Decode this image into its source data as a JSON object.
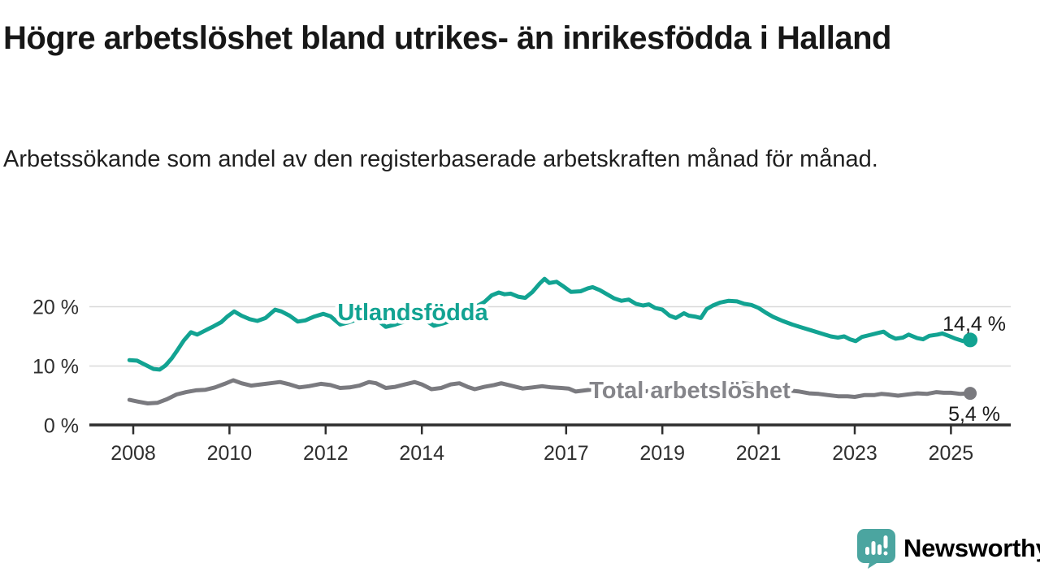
{
  "header": {
    "title": "Högre arbetslöshet bland utrikes- än inrikesfödda i Halland",
    "subtitle": "Arbetssökande som andel av den registerbaserade arbetskraften månad för månad."
  },
  "chart_data": {
    "type": "line",
    "title": "Högre arbetslöshet bland utrikes- än inrikesfödda i Halland",
    "xlabel": "",
    "ylabel": "",
    "grid": "horizontal-only",
    "legend_position": "inline-labels-on-lines",
    "xlim": [
      2007.9,
      2026.3
    ],
    "ylim": [
      0,
      26
    ],
    "x_ticks": [
      2008,
      2010,
      2012,
      2014,
      2017,
      2019,
      2021,
      2023,
      2025
    ],
    "x_tick_labels": [
      "2008",
      "2010",
      "2012",
      "2014",
      "2017",
      "2019",
      "2021",
      "2023",
      "2025"
    ],
    "y_ticks": [
      0,
      10,
      20
    ],
    "y_tick_labels": [
      "0 %",
      "10 %",
      "20 %"
    ],
    "series": [
      {
        "name": "Utlandsfödda",
        "color": "#12a392",
        "end_label": "14,4 %",
        "end_value": 14.4,
        "points": [
          [
            2007.92,
            11.0
          ],
          [
            2008.08,
            10.9
          ],
          [
            2008.25,
            10.2
          ],
          [
            2008.42,
            9.5
          ],
          [
            2008.55,
            9.4
          ],
          [
            2008.67,
            10.1
          ],
          [
            2008.8,
            11.3
          ],
          [
            2008.92,
            12.7
          ],
          [
            2009.05,
            14.3
          ],
          [
            2009.2,
            15.7
          ],
          [
            2009.33,
            15.3
          ],
          [
            2009.5,
            16.0
          ],
          [
            2009.67,
            16.7
          ],
          [
            2009.83,
            17.4
          ],
          [
            2009.95,
            18.3
          ],
          [
            2010.1,
            19.2
          ],
          [
            2010.25,
            18.5
          ],
          [
            2010.42,
            17.9
          ],
          [
            2010.58,
            17.6
          ],
          [
            2010.75,
            18.1
          ],
          [
            2010.95,
            19.5
          ],
          [
            2011.08,
            19.2
          ],
          [
            2011.25,
            18.5
          ],
          [
            2011.42,
            17.5
          ],
          [
            2011.58,
            17.7
          ],
          [
            2011.75,
            18.3
          ],
          [
            2011.95,
            18.8
          ],
          [
            2012.1,
            18.4
          ],
          [
            2012.3,
            17.0
          ],
          [
            2012.45,
            17.3
          ],
          [
            2012.6,
            17.7
          ],
          [
            2012.8,
            18.2
          ],
          [
            2012.95,
            18.4
          ],
          [
            2013.1,
            17.6
          ],
          [
            2013.25,
            16.6
          ],
          [
            2013.45,
            17.0
          ],
          [
            2013.6,
            17.4
          ],
          [
            2013.8,
            18.0
          ],
          [
            2013.95,
            18.3
          ],
          [
            2014.1,
            17.6
          ],
          [
            2014.25,
            16.8
          ],
          [
            2014.45,
            17.2
          ],
          [
            2014.6,
            17.6
          ],
          [
            2014.8,
            18.3
          ],
          [
            2014.95,
            19.0
          ],
          [
            2015.1,
            19.9
          ],
          [
            2015.3,
            20.8
          ],
          [
            2015.45,
            21.9
          ],
          [
            2015.6,
            22.4
          ],
          [
            2015.72,
            22.1
          ],
          [
            2015.85,
            22.2
          ],
          [
            2016.0,
            21.7
          ],
          [
            2016.15,
            21.5
          ],
          [
            2016.3,
            22.5
          ],
          [
            2016.45,
            23.9
          ],
          [
            2016.55,
            24.7
          ],
          [
            2016.65,
            24.0
          ],
          [
            2016.8,
            24.2
          ],
          [
            2016.95,
            23.4
          ],
          [
            2017.1,
            22.5
          ],
          [
            2017.3,
            22.6
          ],
          [
            2017.45,
            23.1
          ],
          [
            2017.55,
            23.3
          ],
          [
            2017.7,
            22.8
          ],
          [
            2017.85,
            22.1
          ],
          [
            2018.0,
            21.4
          ],
          [
            2018.15,
            21.0
          ],
          [
            2018.3,
            21.2
          ],
          [
            2018.45,
            20.5
          ],
          [
            2018.6,
            20.2
          ],
          [
            2018.72,
            20.4
          ],
          [
            2018.85,
            19.8
          ],
          [
            2019.0,
            19.5
          ],
          [
            2019.15,
            18.5
          ],
          [
            2019.28,
            18.1
          ],
          [
            2019.45,
            18.9
          ],
          [
            2019.55,
            18.5
          ],
          [
            2019.7,
            18.3
          ],
          [
            2019.8,
            18.1
          ],
          [
            2019.92,
            19.6
          ],
          [
            2020.05,
            20.2
          ],
          [
            2020.2,
            20.7
          ],
          [
            2020.38,
            21.0
          ],
          [
            2020.55,
            20.9
          ],
          [
            2020.7,
            20.5
          ],
          [
            2020.85,
            20.3
          ],
          [
            2021.0,
            19.8
          ],
          [
            2021.15,
            19.0
          ],
          [
            2021.3,
            18.3
          ],
          [
            2021.5,
            17.6
          ],
          [
            2021.7,
            17.0
          ],
          [
            2021.9,
            16.5
          ],
          [
            2022.1,
            16.0
          ],
          [
            2022.3,
            15.5
          ],
          [
            2022.5,
            15.0
          ],
          [
            2022.65,
            14.8
          ],
          [
            2022.78,
            15.0
          ],
          [
            2022.9,
            14.5
          ],
          [
            2023.02,
            14.2
          ],
          [
            2023.15,
            14.9
          ],
          [
            2023.3,
            15.2
          ],
          [
            2023.5,
            15.6
          ],
          [
            2023.6,
            15.8
          ],
          [
            2023.72,
            15.1
          ],
          [
            2023.85,
            14.6
          ],
          [
            2024.0,
            14.8
          ],
          [
            2024.12,
            15.3
          ],
          [
            2024.3,
            14.7
          ],
          [
            2024.42,
            14.5
          ],
          [
            2024.55,
            15.1
          ],
          [
            2024.72,
            15.3
          ],
          [
            2024.82,
            15.5
          ],
          [
            2024.95,
            15.1
          ],
          [
            2025.1,
            14.6
          ],
          [
            2025.25,
            14.2
          ],
          [
            2025.4,
            14.4
          ]
        ]
      },
      {
        "name": "Total arbetslöshet",
        "color": "#7a7a7f",
        "label_color": "#85858a",
        "end_label": "5,4 %",
        "end_value": 5.4,
        "points": [
          [
            2007.92,
            4.3
          ],
          [
            2008.1,
            4.0
          ],
          [
            2008.3,
            3.7
          ],
          [
            2008.5,
            3.8
          ],
          [
            2008.7,
            4.4
          ],
          [
            2008.9,
            5.2
          ],
          [
            2009.1,
            5.6
          ],
          [
            2009.3,
            5.9
          ],
          [
            2009.5,
            6.0
          ],
          [
            2009.7,
            6.4
          ],
          [
            2009.9,
            7.0
          ],
          [
            2010.08,
            7.6
          ],
          [
            2010.25,
            7.1
          ],
          [
            2010.45,
            6.7
          ],
          [
            2010.65,
            6.9
          ],
          [
            2010.85,
            7.1
          ],
          [
            2011.05,
            7.3
          ],
          [
            2011.25,
            6.9
          ],
          [
            2011.45,
            6.4
          ],
          [
            2011.65,
            6.6
          ],
          [
            2011.9,
            7.0
          ],
          [
            2012.1,
            6.8
          ],
          [
            2012.3,
            6.3
          ],
          [
            2012.5,
            6.4
          ],
          [
            2012.7,
            6.7
          ],
          [
            2012.9,
            7.3
          ],
          [
            2013.05,
            7.1
          ],
          [
            2013.25,
            6.3
          ],
          [
            2013.45,
            6.5
          ],
          [
            2013.65,
            6.9
          ],
          [
            2013.85,
            7.3
          ],
          [
            2014.0,
            6.9
          ],
          [
            2014.2,
            6.1
          ],
          [
            2014.4,
            6.3
          ],
          [
            2014.6,
            6.9
          ],
          [
            2014.78,
            7.1
          ],
          [
            2014.95,
            6.5
          ],
          [
            2015.1,
            6.1
          ],
          [
            2015.3,
            6.5
          ],
          [
            2015.5,
            6.8
          ],
          [
            2015.65,
            7.1
          ],
          [
            2015.85,
            6.7
          ],
          [
            2016.1,
            6.2
          ],
          [
            2016.3,
            6.4
          ],
          [
            2016.5,
            6.6
          ],
          [
            2016.7,
            6.4
          ],
          [
            2016.9,
            6.3
          ],
          [
            2017.05,
            6.2
          ],
          [
            2017.2,
            5.7
          ],
          [
            2017.4,
            5.9
          ],
          [
            2017.6,
            6.1
          ],
          [
            2017.8,
            5.9
          ],
          [
            2018.0,
            6.1
          ],
          [
            2018.2,
            5.8
          ],
          [
            2018.45,
            5.6
          ],
          [
            2018.7,
            5.8
          ],
          [
            2018.95,
            5.9
          ],
          [
            2019.2,
            5.5
          ],
          [
            2019.45,
            5.4
          ],
          [
            2019.7,
            5.6
          ],
          [
            2019.9,
            5.8
          ],
          [
            2020.1,
            6.3
          ],
          [
            2020.3,
            7.2
          ],
          [
            2020.5,
            7.4
          ],
          [
            2020.7,
            7.1
          ],
          [
            2020.9,
            6.9
          ],
          [
            2021.1,
            6.5
          ],
          [
            2021.35,
            6.1
          ],
          [
            2021.6,
            5.9
          ],
          [
            2021.85,
            5.7
          ],
          [
            2022.05,
            5.4
          ],
          [
            2022.25,
            5.3
          ],
          [
            2022.45,
            5.1
          ],
          [
            2022.65,
            4.9
          ],
          [
            2022.85,
            4.9
          ],
          [
            2023.0,
            4.8
          ],
          [
            2023.2,
            5.1
          ],
          [
            2023.4,
            5.1
          ],
          [
            2023.55,
            5.3
          ],
          [
            2023.7,
            5.2
          ],
          [
            2023.9,
            5.0
          ],
          [
            2024.1,
            5.2
          ],
          [
            2024.3,
            5.4
          ],
          [
            2024.5,
            5.3
          ],
          [
            2024.7,
            5.6
          ],
          [
            2024.85,
            5.5
          ],
          [
            2025.0,
            5.5
          ],
          [
            2025.2,
            5.3
          ],
          [
            2025.4,
            5.4
          ]
        ]
      }
    ]
  },
  "footer": {
    "brand": "Newsworthy",
    "brand_color": "#3fa29d",
    "logo_color": "#4ba5a0",
    "logo_icon": "bar-chart-speech-bubble-icon"
  }
}
